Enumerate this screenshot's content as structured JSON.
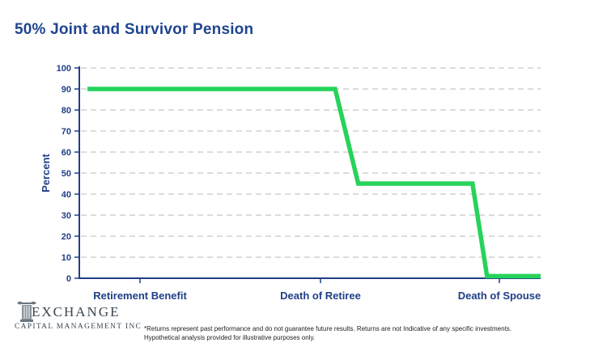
{
  "colors": {
    "line": "#26d35a",
    "axis": "#1f3f86",
    "grid": "#c8c8c8",
    "title": "#1f4590"
  },
  "logo": {
    "icon": "greek-column-icon",
    "word": "EXCHANGE",
    "subtitle": "CAPITAL MANAGEMENT INC"
  },
  "footnote": {
    "line1": "*Returns represent past performance and do not guarantee future results. Returns are not Indicative of any specific investments.",
    "line2": "Hypothetical analysis provided for illustrative purposes only."
  },
  "chart_data": {
    "type": "line",
    "title": "50% Joint and Survivor Pension",
    "xlabel": "",
    "ylabel": "Percent",
    "categories": [
      "Retirement Benefit",
      "Death of Retiree",
      "Death of Spouse"
    ],
    "ylim": [
      0,
      100
    ],
    "yticks": [
      0,
      10,
      20,
      30,
      40,
      50,
      60,
      70,
      80,
      90,
      100
    ],
    "grid": true,
    "legend": "none",
    "series": [
      {
        "x": [
          0,
          1.31,
          1.48,
          2.39,
          2.52,
          3.0
        ],
        "values": [
          90,
          90,
          45,
          45,
          1,
          1
        ]
      }
    ]
  }
}
